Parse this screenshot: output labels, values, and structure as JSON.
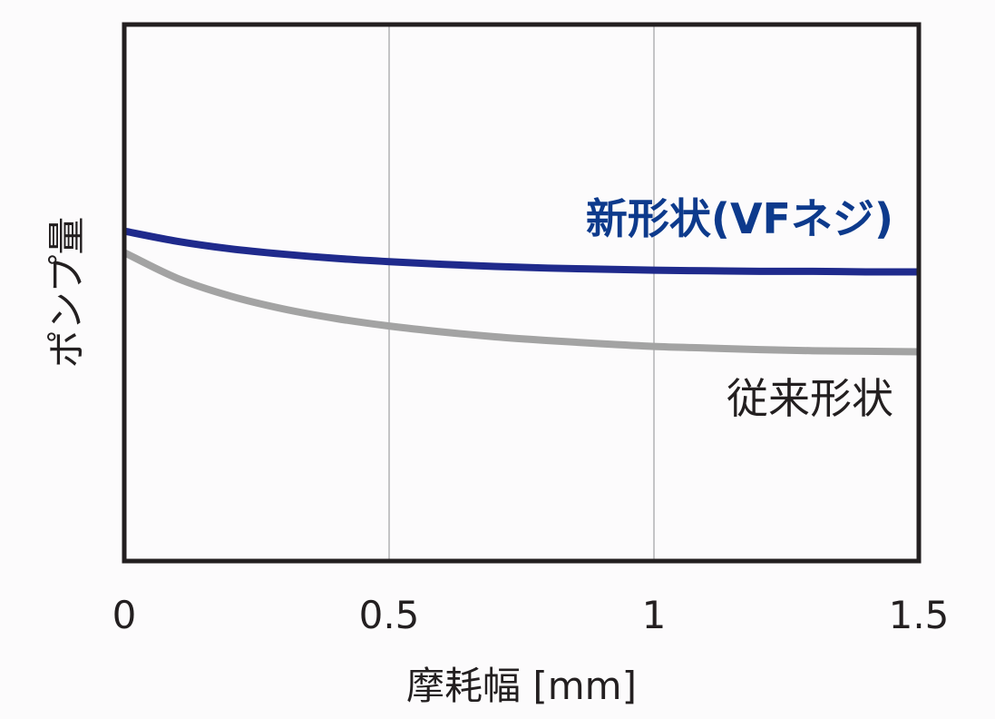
{
  "chart_data": {
    "type": "line",
    "xlabel": "摩耗幅 [mm]",
    "ylabel": "ポンプ量",
    "xlim": [
      0,
      1.5
    ],
    "ylim": [
      0,
      1
    ],
    "x_ticks": [
      "0",
      "0.5",
      "1",
      "1.5"
    ],
    "y_ticks": [],
    "grid": "vertical",
    "series": [
      {
        "name": "新形状(VFネジ)",
        "color": "#1f2a8c",
        "x": [
          0,
          0.1,
          0.2,
          0.3,
          0.4,
          0.5,
          0.6,
          0.7,
          0.8,
          0.9,
          1.0,
          1.1,
          1.2,
          1.3,
          1.4,
          1.5
        ],
        "values": [
          0.615,
          0.596,
          0.582,
          0.572,
          0.564,
          0.558,
          0.553,
          0.549,
          0.546,
          0.544,
          0.542,
          0.541,
          0.54,
          0.54,
          0.539,
          0.539
        ]
      },
      {
        "name": "従来形状",
        "color": "#a3a3a3",
        "x": [
          0,
          0.1,
          0.2,
          0.3,
          0.4,
          0.5,
          0.6,
          0.7,
          0.8,
          0.9,
          1.0,
          1.1,
          1.2,
          1.3,
          1.4,
          1.5
        ],
        "values": [
          0.575,
          0.527,
          0.494,
          0.47,
          0.452,
          0.438,
          0.427,
          0.418,
          0.411,
          0.405,
          0.4,
          0.397,
          0.394,
          0.392,
          0.391,
          0.39
        ]
      }
    ]
  }
}
